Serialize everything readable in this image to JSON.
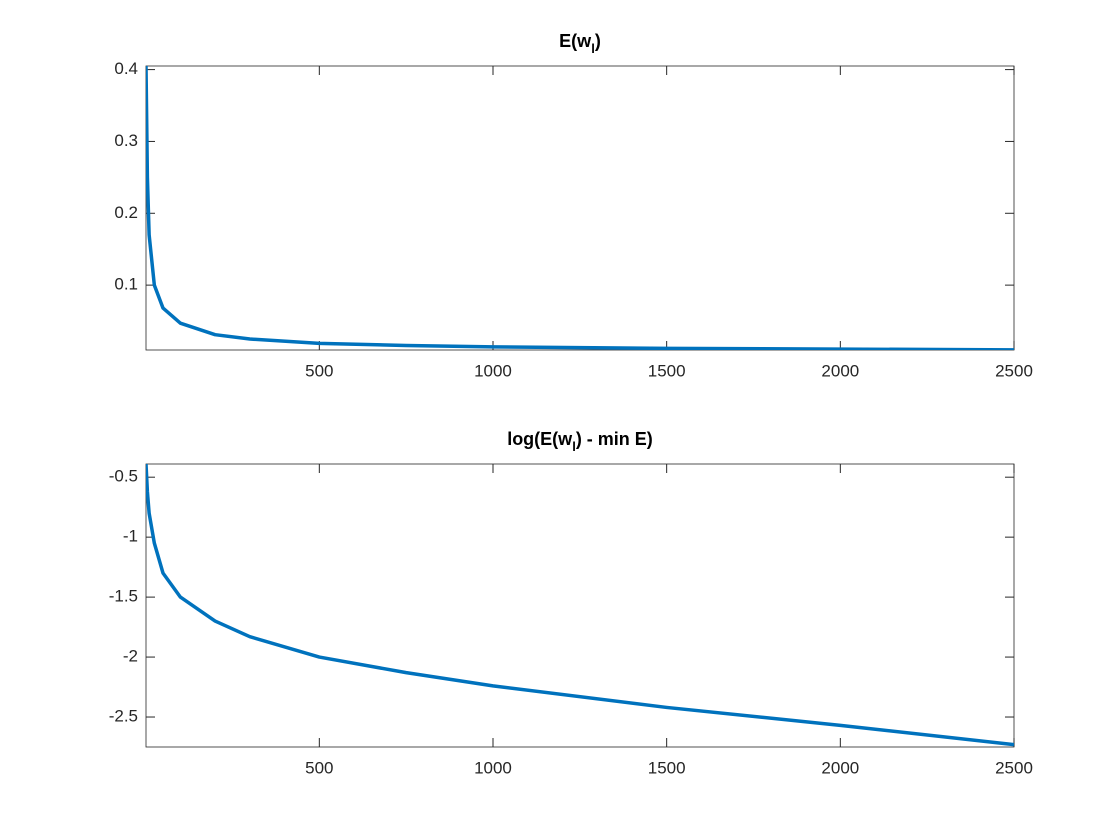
{
  "chart_data": [
    {
      "type": "line",
      "title": [
        "E(w",
        "l",
        ")"
      ],
      "x": [
        1,
        5,
        10,
        25,
        50,
        100,
        200,
        300,
        500,
        750,
        1000,
        1500,
        2000,
        2500
      ],
      "series": [
        {
          "color": "#0072bd",
          "values": [
            0.405,
            0.25,
            0.17,
            0.1,
            0.068,
            0.047,
            0.031,
            0.025,
            0.019,
            0.016,
            0.014,
            0.012,
            0.011,
            0.0098
          ]
        }
      ],
      "xlim": [
        1,
        2500
      ],
      "xticks": [
        500,
        1000,
        1500,
        2000,
        2500
      ],
      "ylim": [
        0.0097,
        0.405
      ],
      "yticks": [
        0.1,
        0.2,
        0.3,
        0.4
      ],
      "grid": false
    },
    {
      "type": "line",
      "title": [
        "log(E(w",
        "l",
        ") - min E)"
      ],
      "x": [
        1,
        5,
        10,
        25,
        50,
        100,
        200,
        300,
        500,
        750,
        1000,
        1500,
        2000,
        2500
      ],
      "series": [
        {
          "color": "#0072bd",
          "values": [
            -0.39,
            -0.62,
            -0.8,
            -1.05,
            -1.3,
            -1.5,
            -1.7,
            -1.83,
            -2.0,
            -2.13,
            -2.24,
            -2.42,
            -2.57,
            -2.73
          ]
        }
      ],
      "xlim": [
        1,
        2500
      ],
      "xticks": [
        500,
        1000,
        1500,
        2000,
        2500
      ],
      "ylim": [
        -2.75,
        -0.39
      ],
      "yticks": [
        -2.5,
        -2,
        -1.5,
        -1,
        -0.5
      ],
      "grid": false
    }
  ]
}
